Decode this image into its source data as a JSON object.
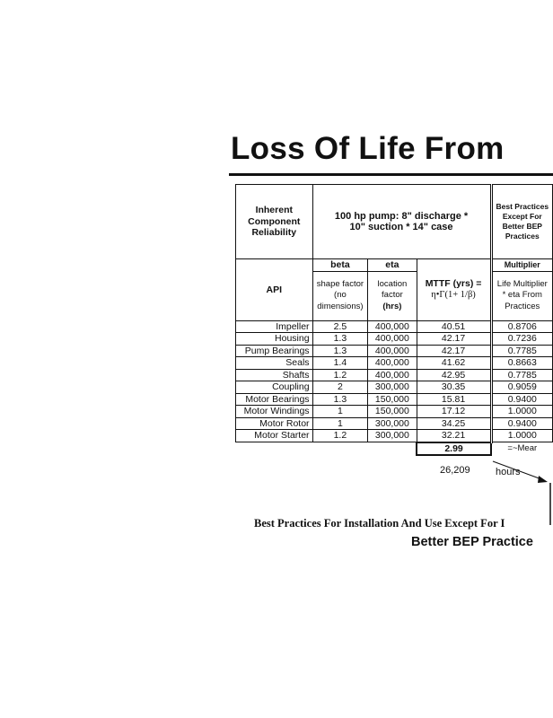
{
  "title": "Loss Of Life From",
  "header": {
    "col1": "Inherent Component Reliability",
    "case": "100 hp pump: 8\" discharge * 10\" suction * 14\" case",
    "best": "Best Practices Except For Better BEP Practices",
    "api": "API",
    "beta": "beta",
    "eta": "eta",
    "multiplier": "Multiplier",
    "beta_desc": "shape factor (no dimensions)",
    "eta_desc1": "location factor",
    "eta_desc2": "(hrs)",
    "mttf1": "MTTF (yrs)  =",
    "mttf2": "η•Γ(1+  1/β)",
    "mult_desc": "Life Multiplier * eta From Practices"
  },
  "rows": [
    {
      "name": "Impeller",
      "beta": "2.5",
      "eta": "400,000",
      "mttf": "40.51",
      "mult": "0.8706"
    },
    {
      "name": "Housing",
      "beta": "1.3",
      "eta": "400,000",
      "mttf": "42.17",
      "mult": "0.7236"
    },
    {
      "name": "Pump Bearings",
      "beta": "1.3",
      "eta": "400,000",
      "mttf": "42.17",
      "mult": "0.7785"
    },
    {
      "name": "Seals",
      "beta": "1.4",
      "eta": "400,000",
      "mttf": "41.62",
      "mult": "0.8663"
    },
    {
      "name": "Shafts",
      "beta": "1.2",
      "eta": "400,000",
      "mttf": "42.95",
      "mult": "0.7785"
    },
    {
      "name": "Coupling",
      "beta": "2",
      "eta": "300,000",
      "mttf": "30.35",
      "mult": "0.9059"
    },
    {
      "name": "Motor Bearings",
      "beta": "1.3",
      "eta": "150,000",
      "mttf": "15.81",
      "mult": "0.9400"
    },
    {
      "name": "Motor Windings",
      "beta": "1",
      "eta": "150,000",
      "mttf": "17.12",
      "mult": "1.0000"
    },
    {
      "name": "Motor Rotor",
      "beta": "1",
      "eta": "300,000",
      "mttf": "34.25",
      "mult": "0.9400"
    },
    {
      "name": "Motor Starter",
      "beta": "1.2",
      "eta": "300,000",
      "mttf": "32.21",
      "mult": "1.0000"
    }
  ],
  "total": "2.99",
  "mean_label": "=~Mear",
  "hours_value": "26,209",
  "hours_label": "hours",
  "footer1": "Best Practices For Installation And Use Except For I",
  "footer2": "Better BEP Practice"
}
